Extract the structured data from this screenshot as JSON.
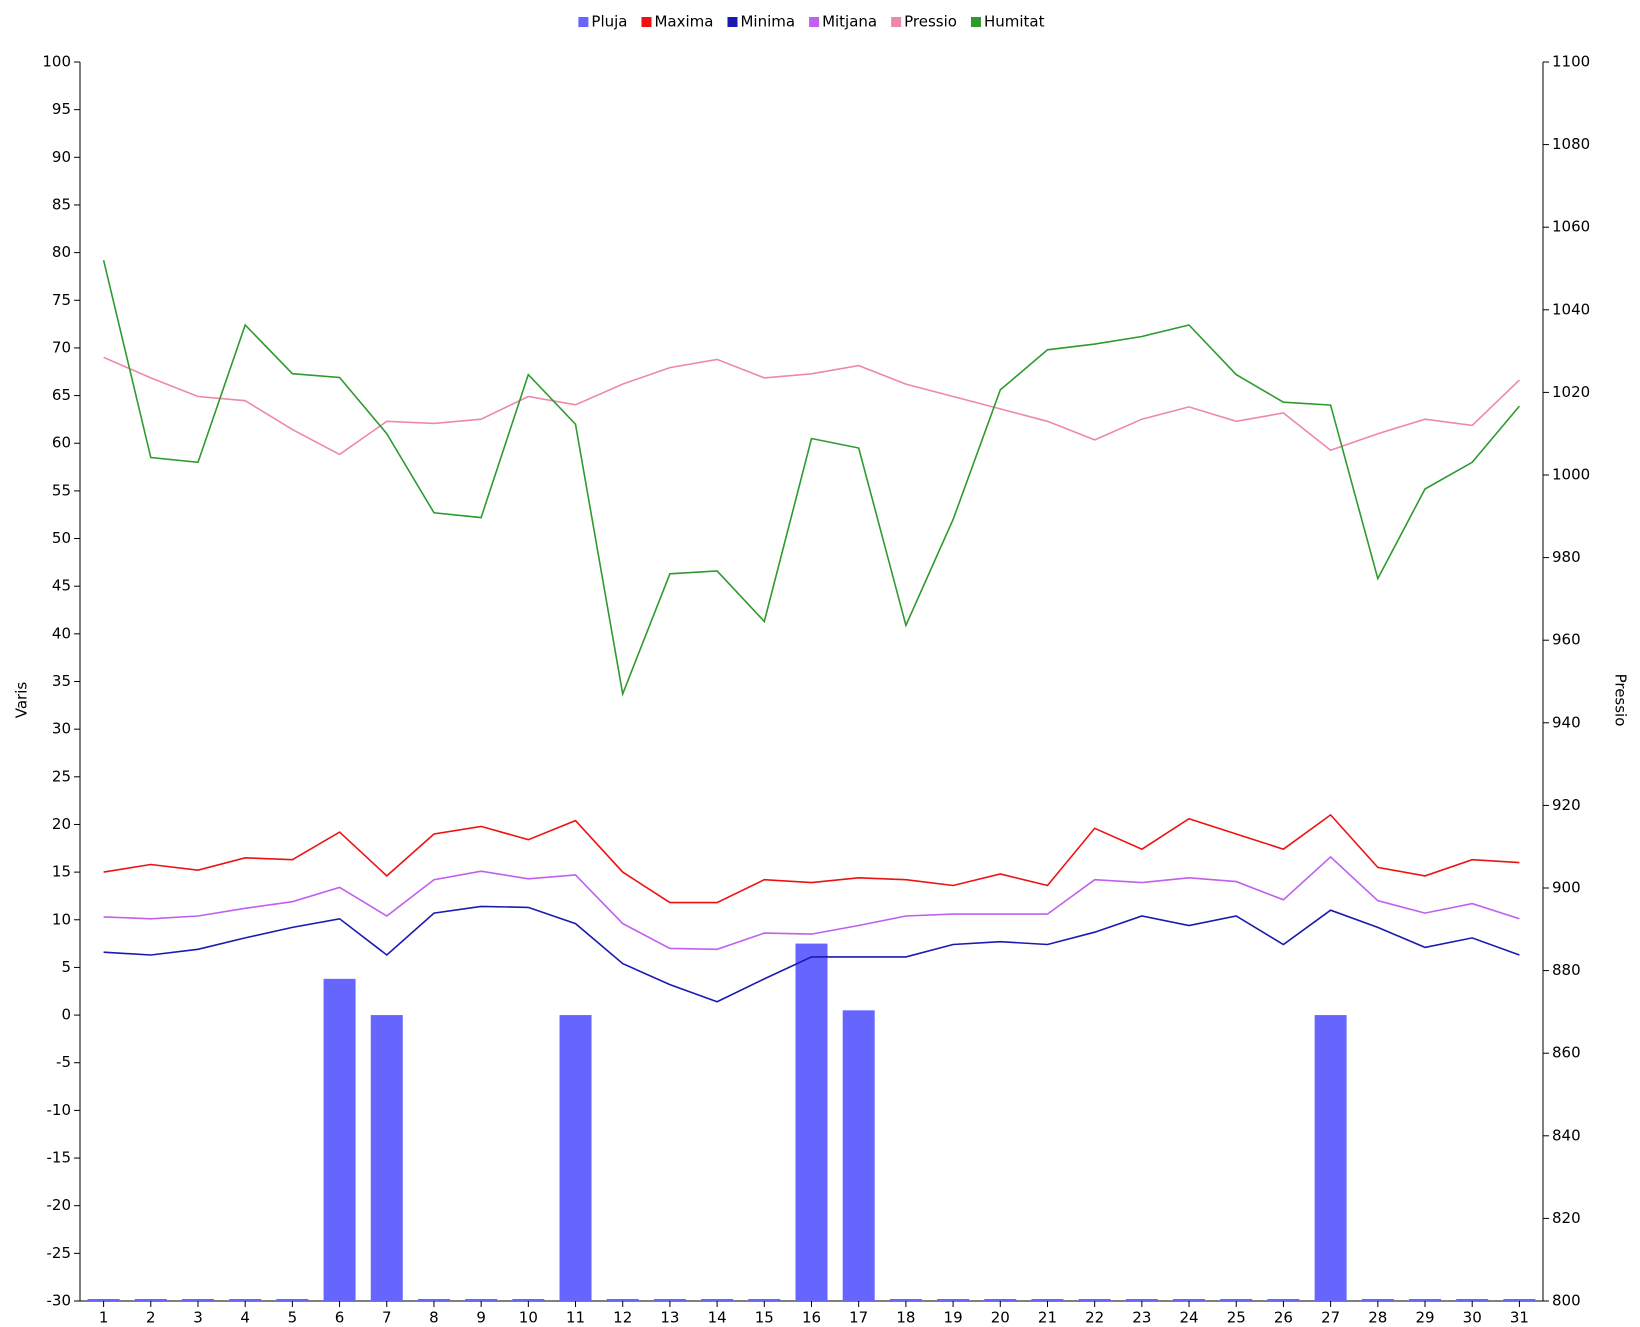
{
  "chart_data": {
    "type": "combo",
    "categories": [
      "1",
      "2",
      "3",
      "4",
      "5",
      "6",
      "7",
      "8",
      "9",
      "10",
      "11",
      "12",
      "13",
      "14",
      "15",
      "16",
      "17",
      "18",
      "19",
      "20",
      "21",
      "22",
      "23",
      "24",
      "25",
      "26",
      "27",
      "28",
      "29",
      "30",
      "31"
    ],
    "ylabel": "Varis",
    "y2label": "Pressio",
    "ylim": [
      -30,
      100
    ],
    "yticks": [
      -30,
      -25,
      -20,
      -15,
      -10,
      -5,
      0,
      5,
      10,
      15,
      20,
      25,
      30,
      35,
      40,
      45,
      50,
      55,
      60,
      65,
      70,
      75,
      80,
      85,
      90,
      95,
      100
    ],
    "y2lim": [
      800,
      1100
    ],
    "y2ticks": [
      800,
      820,
      840,
      860,
      880,
      900,
      920,
      940,
      960,
      980,
      1000,
      1020,
      1040,
      1060,
      1080,
      1100
    ],
    "legend": "top",
    "series": [
      {
        "name": "Pluja",
        "type": "bar",
        "color": "#6666ff",
        "values": [
          -30,
          -30,
          -30,
          -30,
          -30,
          3.8,
          0,
          -30,
          -30,
          -30,
          0,
          -30,
          -30,
          -30,
          -30,
          7.5,
          0.5,
          -30,
          -30,
          -30,
          -30,
          -30,
          -30,
          -30,
          -30,
          -30,
          0,
          -30,
          -30,
          -30,
          -30
        ]
      },
      {
        "name": "Maxima",
        "type": "line",
        "color": "#ee1111",
        "values": [
          15,
          15.8,
          15.2,
          16.5,
          16.3,
          19.2,
          14.6,
          19,
          19.8,
          18.4,
          20.4,
          15,
          11.8,
          11.8,
          14.2,
          13.9,
          14.4,
          14.2,
          13.6,
          14.8,
          13.6,
          19.6,
          17.4,
          20.6,
          19,
          17.4,
          21,
          15.5,
          14.6,
          16.3,
          16
        ]
      },
      {
        "name": "Minima",
        "type": "line",
        "color": "#1a1ab0",
        "values": [
          6.6,
          6.3,
          6.9,
          8.1,
          9.2,
          10.1,
          6.3,
          10.7,
          11.4,
          11.3,
          9.6,
          5.4,
          3.2,
          1.4,
          3.8,
          6.1,
          6.1,
          6.1,
          7.4,
          7.7,
          7.4,
          8.7,
          10.4,
          9.4,
          10.4,
          7.4,
          11,
          9.2,
          7.1,
          8.1,
          6.3
        ]
      },
      {
        "name": "Mitjana",
        "type": "line",
        "color": "#c060ee",
        "values": [
          10.3,
          10.1,
          10.4,
          11.2,
          11.9,
          13.4,
          10.4,
          14.2,
          15.1,
          14.3,
          14.7,
          9.6,
          7,
          6.9,
          8.6,
          8.5,
          9.4,
          10.4,
          10.6,
          10.6,
          10.6,
          14.2,
          13.9,
          14.4,
          14,
          12.1,
          16.6,
          12,
          10.7,
          11.7,
          10.1
        ]
      },
      {
        "name": "Pressio",
        "type": "line",
        "axis": "y2",
        "color": "#ee88aa",
        "values": [
          1028.5,
          1023.5,
          1019,
          1018,
          1011,
          1005,
          1013,
          1012.5,
          1013.5,
          1019,
          1017,
          1022,
          1026,
          1028,
          1023.5,
          1024.5,
          1026.5,
          1022,
          1019,
          1016,
          1013,
          1008.5,
          1013.5,
          1016.5,
          1013,
          1015,
          1006,
          1010,
          1013.5,
          1012,
          1023
        ]
      },
      {
        "name": "Humitat",
        "type": "line",
        "color": "#2e9b2e",
        "values": [
          79.2,
          58.5,
          58,
          72.4,
          67.3,
          66.9,
          61,
          52.7,
          52.2,
          67.2,
          62,
          33.7,
          46.3,
          46.6,
          41.3,
          60.5,
          59.5,
          40.9,
          52,
          65.6,
          69.8,
          70.4,
          71.2,
          72.4,
          67.2,
          64.3,
          64,
          45.8,
          55.2,
          58,
          63.9
        ]
      }
    ]
  }
}
